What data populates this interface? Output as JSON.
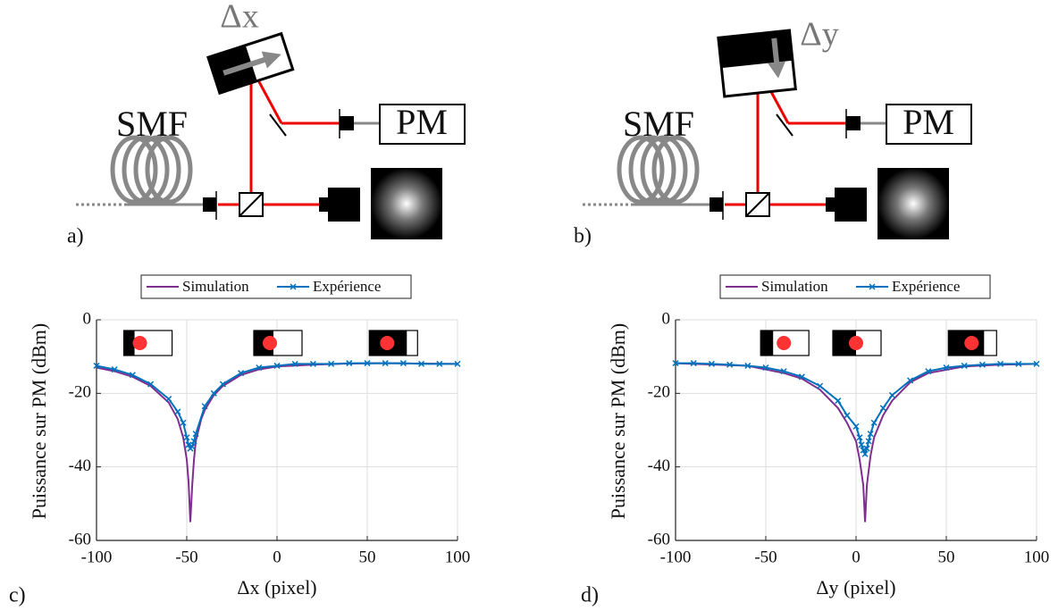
{
  "diagrams": [
    {
      "panel": "a)",
      "shift": "Δx",
      "fiber": "SMF",
      "detector": "PM"
    },
    {
      "panel": "b)",
      "shift": "Δy",
      "fiber": "SMF",
      "detector": "PM"
    }
  ],
  "chart_data": [
    {
      "type": "line",
      "panel": "c)",
      "xlabel": "Δx (pixel)",
      "ylabel": "Puissance sur PM (dBm)",
      "xlim": [
        -100,
        100
      ],
      "xticks": [
        -100,
        -50,
        0,
        50,
        100
      ],
      "ylim": [
        -60,
        0
      ],
      "yticks": [
        -60,
        -40,
        -20,
        0
      ],
      "grid": true,
      "legend": "top",
      "series": [
        {
          "name": "Simulation",
          "color": "#7e2f8e",
          "marker": "none",
          "x": [
            -100,
            -90,
            -80,
            -70,
            -60,
            -55,
            -52,
            -50,
            -49,
            -48,
            -47,
            -46,
            -45,
            -42,
            -40,
            -35,
            -30,
            -20,
            -10,
            0,
            20,
            40,
            60,
            80,
            100
          ],
          "values": [
            -13,
            -14,
            -15.5,
            -18,
            -22.5,
            -27,
            -32,
            -38,
            -44,
            -55,
            -45,
            -38,
            -33,
            -27,
            -24.5,
            -20.5,
            -18,
            -15,
            -13.5,
            -12.7,
            -12.2,
            -11.9,
            -11.8,
            -11.9,
            -12
          ]
        },
        {
          "name": "Expérience",
          "color": "#0072bd",
          "marker": "x",
          "x": [
            -100,
            -90,
            -80,
            -70,
            -60,
            -55,
            -52,
            -50,
            -49,
            -48,
            -47,
            -46,
            -45,
            -40,
            -35,
            -30,
            -20,
            -10,
            0,
            10,
            20,
            30,
            40,
            50,
            60,
            70,
            80,
            90,
            100
          ],
          "values": [
            -12.5,
            -13.5,
            -15,
            -17.5,
            -21.5,
            -25,
            -28,
            -32,
            -34,
            -35,
            -34.5,
            -33,
            -31,
            -23.5,
            -20,
            -17.5,
            -14.5,
            -13,
            -12.5,
            -12,
            -12,
            -12,
            -11.8,
            -11.8,
            -11.8,
            -11.8,
            -12,
            -12,
            -12
          ]
        }
      ]
    },
    {
      "type": "line",
      "panel": "d)",
      "xlabel": "Δy (pixel)",
      "ylabel": "Puissance sur PM (dBm)",
      "xlim": [
        -100,
        100
      ],
      "xticks": [
        -100,
        -50,
        0,
        50,
        100
      ],
      "ylim": [
        -60,
        0
      ],
      "yticks": [
        -60,
        -40,
        -20,
        0
      ],
      "grid": true,
      "legend": "top",
      "series": [
        {
          "name": "Simulation",
          "color": "#7e2f8e",
          "marker": "none",
          "x": [
            -100,
            -60,
            -40,
            -30,
            -20,
            -10,
            -5,
            0,
            2,
            4,
            5,
            6,
            8,
            10,
            15,
            20,
            30,
            40,
            60,
            80,
            100
          ],
          "values": [
            -11.8,
            -12.5,
            -14.5,
            -16,
            -19,
            -24,
            -28,
            -33,
            -38,
            -45,
            -55,
            -45,
            -37,
            -32,
            -26,
            -22,
            -17,
            -14.5,
            -12.7,
            -12.2,
            -12
          ]
        },
        {
          "name": "Expérience",
          "color": "#0072bd",
          "marker": "x",
          "x": [
            -100,
            -90,
            -80,
            -70,
            -60,
            -50,
            -40,
            -30,
            -20,
            -10,
            -5,
            0,
            2,
            3,
            4,
            5,
            6,
            7,
            8,
            10,
            15,
            20,
            30,
            40,
            50,
            60,
            70,
            80,
            90,
            100
          ],
          "values": [
            -11.8,
            -11.8,
            -12,
            -12.2,
            -12.5,
            -13,
            -14,
            -15.5,
            -18,
            -22,
            -26,
            -29,
            -32,
            -34,
            -35.5,
            -36.5,
            -35,
            -33,
            -31,
            -28,
            -24,
            -20.5,
            -16.5,
            -14,
            -13,
            -12.5,
            -12.2,
            -12,
            -12,
            -12
          ]
        }
      ]
    }
  ]
}
